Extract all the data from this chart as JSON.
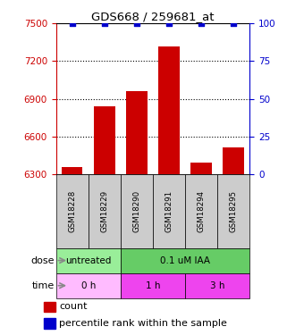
{
  "title": "GDS668 / 259681_at",
  "samples": [
    "GSM18228",
    "GSM18229",
    "GSM18290",
    "GSM18291",
    "GSM18294",
    "GSM18295"
  ],
  "counts": [
    6360,
    6840,
    6960,
    7320,
    6390,
    6510
  ],
  "percentiles": [
    100,
    100,
    100,
    100,
    100,
    100
  ],
  "ylim_left": [
    6300,
    7500
  ],
  "ylim_right": [
    0,
    100
  ],
  "yticks_left": [
    6300,
    6600,
    6900,
    7200,
    7500
  ],
  "yticks_right": [
    0,
    25,
    50,
    75,
    100
  ],
  "bar_color": "#cc0000",
  "scatter_color": "#0000cc",
  "dose_spans": [
    {
      "text": "untreated",
      "cs": 0,
      "ce": 2,
      "color": "#99ee99"
    },
    {
      "text": "0.1 uM IAA",
      "cs": 2,
      "ce": 6,
      "color": "#66cc66"
    }
  ],
  "time_spans": [
    {
      "text": "0 h",
      "cs": 0,
      "ce": 2,
      "color": "#ffbbff"
    },
    {
      "text": "1 h",
      "cs": 2,
      "ce": 4,
      "color": "#ee44ee"
    },
    {
      "text": "3 h",
      "cs": 4,
      "ce": 6,
      "color": "#ee44ee"
    }
  ],
  "dose_label": "dose",
  "time_label": "time",
  "legend_count": "count",
  "legend_percentile": "percentile rank within the sample",
  "left_tick_color": "#cc0000",
  "right_tick_color": "#0000cc",
  "title_color": "black",
  "bar_width": 0.65,
  "n_samples": 6,
  "sample_box_color": "#cccccc",
  "grid_color": "black",
  "spine_left_color": "#cc0000",
  "spine_right_color": "#0000cc"
}
